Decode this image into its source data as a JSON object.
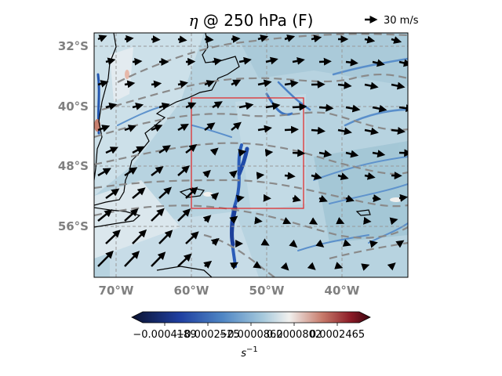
{
  "title": {
    "symbol": "η",
    "text": " @ 250 hPa (F)"
  },
  "quiver_key": {
    "label": "30 m/s",
    "icon": "arrow-right-icon"
  },
  "axes": {
    "lat_ticks": [
      "32°S",
      "40°S",
      "48°S",
      "56°S"
    ],
    "lon_ticks": [
      "70°W",
      "60°W",
      "50°W",
      "40°W"
    ]
  },
  "colorbar": {
    "ticks": [
      "−0.0004189",
      "−0.0002525",
      "−0.0000862",
      "0.0000802",
      "0.0002465"
    ],
    "unit_base": "s",
    "unit_exp": "−1",
    "colormap": [
      "#0b1230",
      "#1f3fa0",
      "#4f86c4",
      "#a6c9dc",
      "#f1f0ee",
      "#c77a6a",
      "#8b1a26",
      "#3a0610"
    ]
  },
  "map": {
    "background_color": "#b7d3e0",
    "box_color": "#e03030",
    "coast_color": "#000000",
    "contour_color": "#8a8a8a",
    "grid_color": "#999999"
  }
}
